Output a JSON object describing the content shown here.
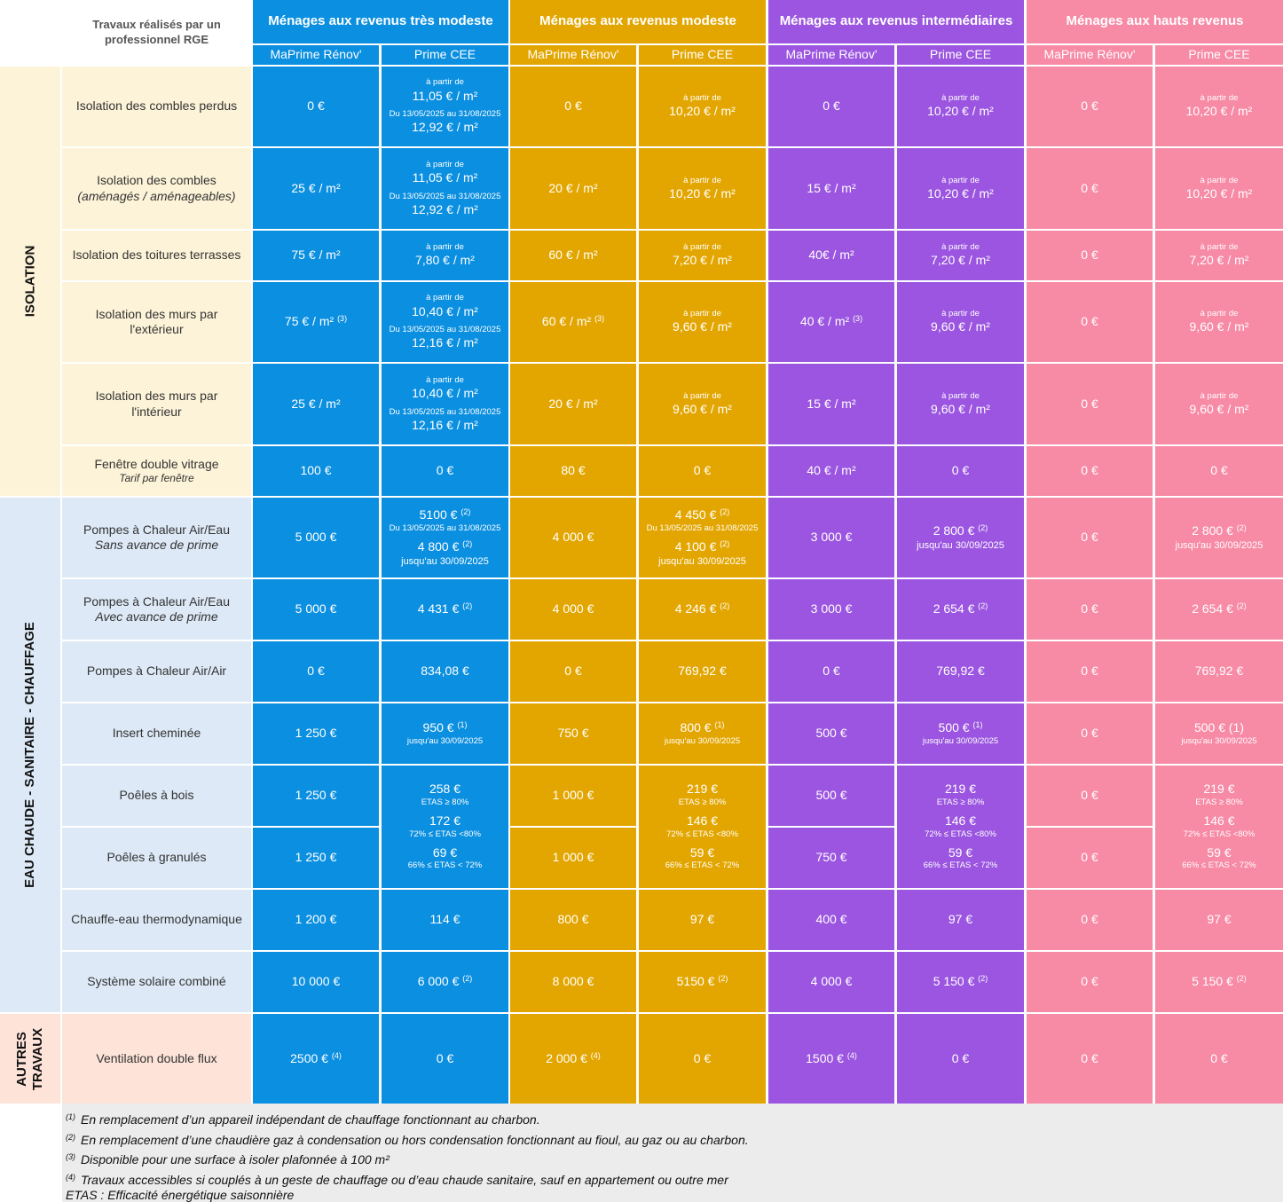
{
  "header": {
    "corner_label": "Travaux réalisés par un professionnel RGE",
    "groups": [
      "Ménages aux revenus très modeste",
      "Ménages aux revenus modeste",
      "Ménages aux revenus intermédiaires",
      "Ménages aux hauts revenus"
    ],
    "sub_labels": [
      "MaPrime Rénov'",
      "Prime CEE"
    ]
  },
  "colors": {
    "very_modest": "#0b8fe0",
    "modest": "#e3a600",
    "intermediate": "#9b55e0",
    "high": "#f78aa5",
    "isolation_bg": "#fdf3d8",
    "heating_bg": "#dde9f6",
    "other_bg": "#fde3d8"
  },
  "categories": [
    "ISOLATION",
    "EAU CHAUDE - SANITAIRE - CHAUFFAGE",
    "AUTRES\nTRAVAUX"
  ],
  "rows": [
    {
      "label": "Isolation des combles perdus",
      "sub": ""
    },
    {
      "label": "Isolation des combles",
      "sub": "(aménagés / aménageables)"
    },
    {
      "label": "Isolation des toitures terrasses",
      "sub": ""
    },
    {
      "label": "Isolation des murs par l'extérieur",
      "sub": ""
    },
    {
      "label": "Isolation des murs par l'intérieur",
      "sub": ""
    },
    {
      "label": "Fenêtre double vitrage",
      "sub": "Tarif par fenêtre"
    },
    {
      "label": "Pompes à Chaleur Air/Eau",
      "sub": "Sans avance de prime"
    },
    {
      "label": "Pompes à Chaleur Air/Eau",
      "sub": "Avec avance de prime"
    },
    {
      "label": "Pompes à Chaleur Air/Air",
      "sub": ""
    },
    {
      "label": "Insert cheminée",
      "sub": ""
    },
    {
      "label": "Poêles à bois",
      "sub": ""
    },
    {
      "label": "Poêles à granulés",
      "sub": ""
    },
    {
      "label": "Chauffe-eau thermodynamique",
      "sub": ""
    },
    {
      "label": "Système solaire combiné",
      "sub": ""
    },
    {
      "label": "Ventilation double flux",
      "sub": ""
    }
  ],
  "texts": {
    "eur0": "0 €",
    "from": "à partir de",
    "from_short": "à partir de",
    "period": "Du 13/05/2025 au 31/08/2025",
    "until": "jusqu'au 30/09/2025",
    "r0": {
      "a": "11,05 € / m²",
      "b": "12,92 € / m²",
      "c": "10,20 € / m²"
    },
    "r1": {
      "a": "25 € / m²",
      "b": "11,05 € / m²",
      "c": "12,92 € / m²",
      "d": "20 € / m²",
      "e": "10,20 € / m²",
      "f": "15 € / m²"
    },
    "r2": {
      "a": "75 € / m²",
      "b": "7,80 € / m²",
      "c": "60 € / m²",
      "d": "7,20 € / m²",
      "e": "40€ / m²"
    },
    "r3": {
      "a": "75 € / m²",
      "b": "10,40 € / m²",
      "c": "12,16 € / m²",
      "d": "60 € / m²",
      "e": "9,60 € / m²",
      "f": "40 € / m²"
    },
    "r4": {
      "a": "25 € / m²",
      "b": "10,40 € / m²",
      "c": "12,16 € / m²",
      "d": "20 € / m²",
      "e": "9,60 € / m²",
      "f": "15 € / m²"
    },
    "r5": {
      "a": "100 €",
      "b": "80 €",
      "c": "40 € / m²"
    },
    "r6": {
      "a": "5 000 €",
      "b": "5100 €",
      "c": "4 800 €",
      "d": "4 000 €",
      "e": "4 450 €",
      "f": "4 100 €",
      "g": "3 000 €",
      "h": "2 800 €"
    },
    "r7": {
      "a": "5 000 €",
      "b": "4 431 €",
      "c": "4 000 €",
      "d": "4 246 €",
      "e": "3 000 €",
      "f": "2 654 €"
    },
    "r8": {
      "a": "834,08 €",
      "b": "769,92 €"
    },
    "r9": {
      "a": "1 250 €",
      "b": "950 €",
      "c": "750 €",
      "d": "800 €",
      "e": "500 €",
      "f": "500 € (1)"
    },
    "r10": {
      "a": "1 250 €",
      "b": "1 000 €",
      "c": "500 €"
    },
    "r11": {
      "a": "1 250 €",
      "b": "1 000 €",
      "c": "750 €"
    },
    "stoves_vm": {
      "v1": "258 €",
      "l1": "ETAS  ≥ 80%",
      "v2": "172 €",
      "l2": "72% ≤ ETAS <80%",
      "v3": "69 €",
      "l3": "66% ≤ ETAS < 72%"
    },
    "stoves_m": {
      "v1": "219 €",
      "l1": "ETAS  ≥ 80%",
      "v2": "146 €",
      "l2": "72% ≤ ETAS <80%",
      "v3": "59 €",
      "l3": "66% ≤ ETAS < 72%"
    },
    "r12": {
      "a": "1 200 €",
      "b": "114 €",
      "c": "800 €",
      "d": "97 €",
      "e": "400 €"
    },
    "r13": {
      "a": "10 000 €",
      "b": "6 000 €",
      "c": "8 000 €",
      "d": "5150 €",
      "e": "4 000 €",
      "f": "5 150 €"
    },
    "r14": {
      "a": "2500 €",
      "b": "2 000 €",
      "c": "1500 €"
    },
    "fn1": "(1)",
    "fn2": "(2)",
    "fn3": "(3)",
    "fn4": "(4)"
  },
  "notes": [
    {
      "mark": "(1)",
      "text": "En remplacement d’un appareil indépendant de chauffage fonctionnant au charbon."
    },
    {
      "mark": "(2)",
      "text": "En remplacement d’une chaudière gaz à condensation ou hors condensation fonctionnant au fioul, au gaz ou au charbon."
    },
    {
      "mark": "(3)",
      "text": "Disponible pour une surface à isoler plafonnée à 100 m²"
    },
    {
      "mark": "(4)",
      "text": "Travaux accessibles si couplés à un geste de chauffage ou d’eau chaude sanitaire, sauf en appartement ou outre mer"
    },
    {
      "mark": "",
      "text": "ETAS : Efficacité énergétique saisonnière"
    }
  ]
}
